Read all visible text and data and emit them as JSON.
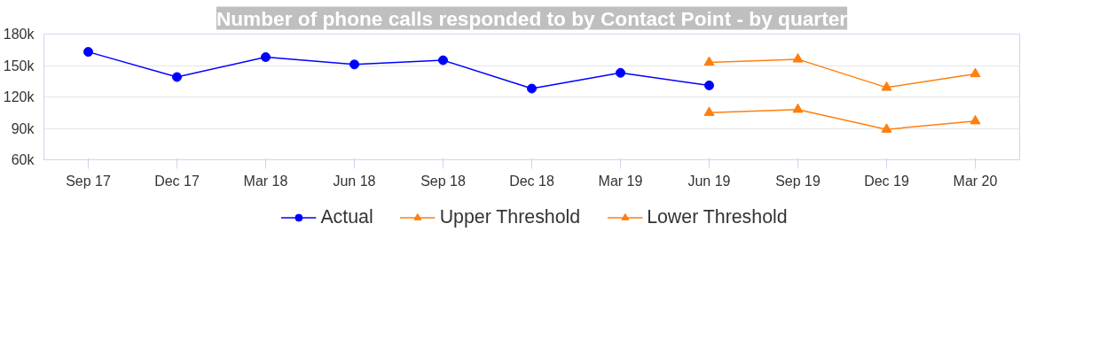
{
  "chart_data": {
    "type": "line",
    "title": "Number of phone calls responded to by Contact Point - by quarter",
    "categories": [
      "Sep 17",
      "Dec 17",
      "Mar 18",
      "Jun 18",
      "Sep 18",
      "Dec 18",
      "Mar 19",
      "Jun 19",
      "Sep 19",
      "Dec 19",
      "Mar 20"
    ],
    "series": [
      {
        "name": "Actual",
        "color": "#0000ff",
        "marker": "circle",
        "values": [
          163000,
          139000,
          158000,
          151000,
          155000,
          128000,
          143000,
          131000,
          null,
          null,
          null
        ]
      },
      {
        "name": "Upper Threshold",
        "color": "#ff7f0e",
        "marker": "triangle",
        "values": [
          null,
          null,
          null,
          null,
          null,
          null,
          null,
          153000,
          156000,
          129000,
          142000
        ]
      },
      {
        "name": "Lower Threshold",
        "color": "#ff7f0e",
        "marker": "triangle",
        "values": [
          null,
          null,
          null,
          null,
          null,
          null,
          null,
          105000,
          108000,
          89000,
          97000
        ]
      }
    ],
    "ylim": [
      60000,
      180000
    ],
    "yticks": [
      {
        "value": 60000,
        "label": "60k"
      },
      {
        "value": 90000,
        "label": "90k"
      },
      {
        "value": 120000,
        "label": "120k"
      },
      {
        "value": 150000,
        "label": "150k"
      },
      {
        "value": 180000,
        "label": "180k"
      }
    ],
    "grid": "y",
    "legend": "bottom"
  }
}
